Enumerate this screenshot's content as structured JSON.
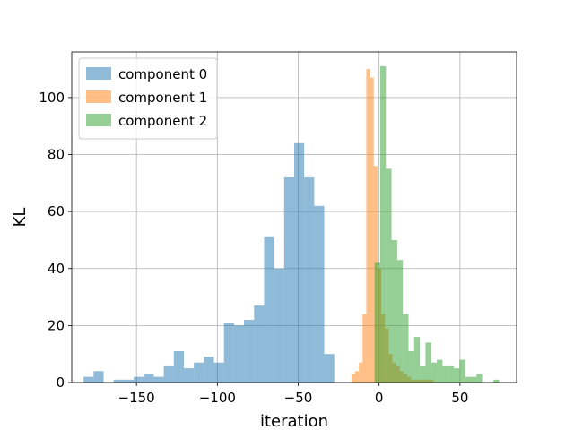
{
  "chart_data": {
    "type": "bar",
    "title": "",
    "xlabel": "iteration",
    "ylabel": "KL",
    "xlim": [
      -190,
      85
    ],
    "ylim": [
      0,
      116
    ],
    "xticks": [
      -150,
      -100,
      -50,
      0,
      50
    ],
    "yticks": [
      0,
      20,
      40,
      60,
      80,
      100
    ],
    "xtick_labels": [
      "−150",
      "−100",
      "−50",
      "0",
      "50"
    ],
    "ytick_labels": [
      "0",
      "20",
      "40",
      "60",
      "80",
      "100"
    ],
    "grid": true,
    "legend_position": "top-left",
    "series": [
      {
        "name": "component 0",
        "color": "#1f77b4",
        "opacity": 0.5,
        "bin_width": 6.2,
        "bins_start": [
          -182.7,
          -176.5,
          -170.3,
          -164.1,
          -157.9,
          -151.7,
          -145.5,
          -139.3,
          -133.1,
          -126.9,
          -120.7,
          -114.5,
          -108.3,
          -102.1,
          -95.9,
          -89.7,
          -83.5,
          -77.3,
          -71.1,
          -64.9,
          -58.7,
          -52.5,
          -46.3,
          -40.1,
          -33.9
        ],
        "values": [
          2,
          4,
          0,
          1,
          1,
          2,
          3,
          2,
          6,
          11,
          5,
          7,
          9,
          7,
          21,
          20,
          22,
          27,
          51,
          40,
          72,
          84,
          72,
          62,
          10
        ]
      },
      {
        "name": "component 1",
        "color": "#ff7f0e",
        "opacity": 0.5,
        "bin_width": 2.3,
        "bins_start": [
          -17.1,
          -14.8,
          -12.5,
          -10.2,
          -7.9,
          -5.6,
          -3.3,
          -1.0,
          1.3,
          3.6,
          5.9,
          8.2,
          10.5,
          12.8,
          15.1,
          17.4,
          19.7,
          22.0,
          24.3,
          26.6,
          28.9,
          31.2,
          33.5,
          35.8
        ],
        "values": [
          3,
          4,
          7,
          24,
          110,
          107,
          76,
          40,
          24,
          19,
          10,
          7,
          6,
          4,
          3,
          2,
          1,
          1,
          1,
          1,
          1,
          1,
          0,
          0
        ]
      },
      {
        "name": "component 2",
        "color": "#2ca02c",
        "opacity": 0.5,
        "bin_width": 3.5,
        "bins_start": [
          -2.8,
          0.7,
          4.2,
          7.7,
          11.2,
          14.7,
          18.2,
          21.7,
          25.2,
          28.7,
          32.2,
          35.7,
          39.2,
          42.7,
          46.2,
          49.7,
          53.2,
          56.7,
          60.2,
          63.7,
          67.2,
          70.7
        ],
        "values": [
          42,
          111,
          75,
          50,
          43,
          24,
          11,
          16,
          6,
          14,
          7,
          8,
          6,
          6,
          5,
          8,
          2,
          2,
          3,
          0,
          0,
          1
        ]
      }
    ]
  }
}
